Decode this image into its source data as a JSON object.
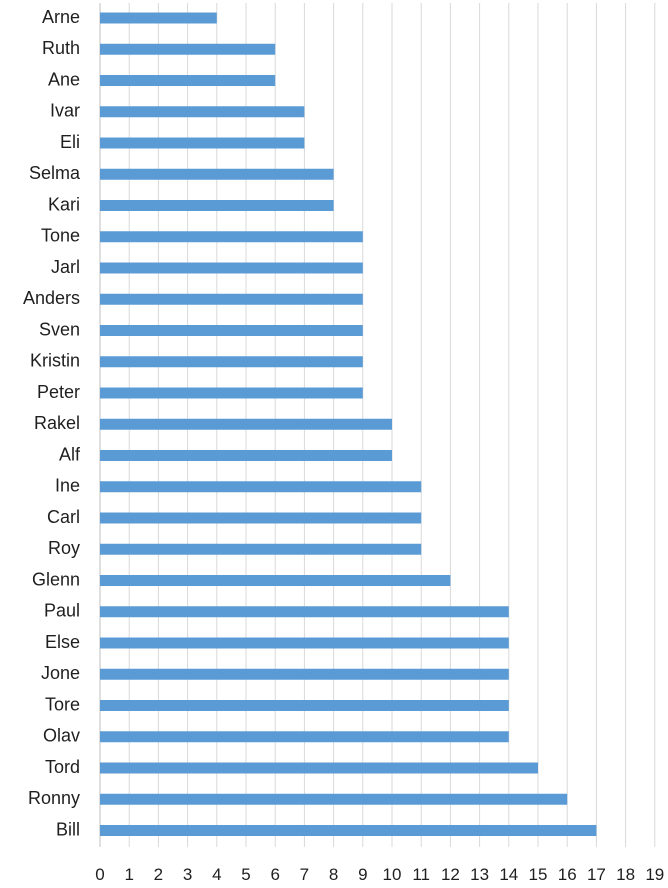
{
  "chart_data": {
    "type": "bar",
    "orientation": "horizontal",
    "categories": [
      "Arne",
      "Ruth",
      "Ane",
      "Ivar",
      "Eli",
      "Selma",
      "Kari",
      "Tone",
      "Jarl",
      "Anders",
      "Sven",
      "Kristin",
      "Peter",
      "Rakel",
      "Alf",
      "Ine",
      "Carl",
      "Roy",
      "Glenn",
      "Paul",
      "Else",
      "Jone",
      "Tore",
      "Olav",
      "Tord",
      "Ronny",
      "Bill"
    ],
    "values": [
      4,
      6,
      6,
      7,
      7,
      8,
      8,
      9,
      9,
      9,
      9,
      9,
      9,
      10,
      10,
      11,
      11,
      11,
      12,
      14,
      14,
      14,
      14,
      14,
      15,
      16,
      17
    ],
    "x_ticks": [
      0,
      1,
      2,
      3,
      4,
      5,
      6,
      7,
      8,
      9,
      10,
      11,
      12,
      13,
      14,
      15,
      16,
      17,
      18,
      19
    ],
    "xlim": [
      0,
      19
    ],
    "grid": true,
    "bar_color": "#5b9bd5",
    "grid_color": "#d9d9d9"
  }
}
